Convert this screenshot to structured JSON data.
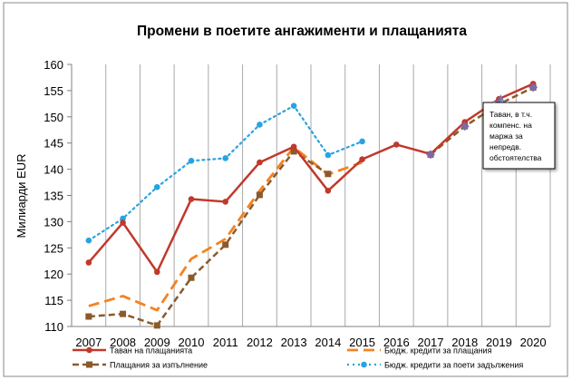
{
  "chart_data": {
    "type": "line",
    "title": "Промени в поетите ангажименти и плащанията",
    "ylabel": "Милиарди EUR",
    "xlabel": "",
    "ylim": [
      110,
      160
    ],
    "yticks": [
      110,
      115,
      120,
      125,
      130,
      135,
      140,
      145,
      150,
      155,
      160
    ],
    "categories": [
      "2007",
      "2008",
      "2009",
      "2010",
      "2011",
      "2012",
      "2013",
      "2014",
      "2015",
      "2016",
      "2017",
      "2018",
      "2019",
      "2020"
    ],
    "grid": "vertical",
    "series": [
      {
        "name": "Таван на плащанията",
        "color": "#c0392b",
        "style": "solid",
        "marker": "dot",
        "values": [
          122.2,
          129.8,
          120.4,
          134.3,
          133.8,
          141.3,
          144.3,
          135.9,
          141.9,
          144.7,
          142.9,
          149.0,
          153.4,
          156.3
        ]
      },
      {
        "name": "Бюдж. кредити за плащания",
        "color": "#f58220",
        "style": "long-dash",
        "marker": "none",
        "values": [
          113.9,
          115.8,
          113.1,
          122.9,
          126.7,
          135.9,
          144.2,
          139.0,
          141.3,
          null,
          null,
          null,
          null,
          null
        ]
      },
      {
        "name": "Плащания за изпълнение",
        "color": "#8b5a2b",
        "style": "dash",
        "marker": "square",
        "values": [
          111.9,
          112.4,
          110.2,
          119.3,
          125.6,
          135.1,
          143.4,
          139.1,
          null,
          null,
          142.8,
          148.2,
          152.4,
          155.6
        ]
      },
      {
        "name": "Бюдж. кредити за поети задължения",
        "color": "#29a3e0",
        "style": "dot",
        "marker": "dot",
        "values": [
          126.4,
          130.6,
          136.6,
          141.6,
          142.1,
          148.5,
          152.1,
          142.7,
          145.3,
          null,
          null,
          null,
          null,
          null
        ]
      }
    ],
    "annotation": {
      "lines": [
        "Таван, в т.ч.",
        "компенс. на",
        "маржа за",
        "непредв.",
        "обстоятелства"
      ],
      "points_to": [
        "2019",
        "2020"
      ]
    },
    "legend_position": "bottom"
  }
}
